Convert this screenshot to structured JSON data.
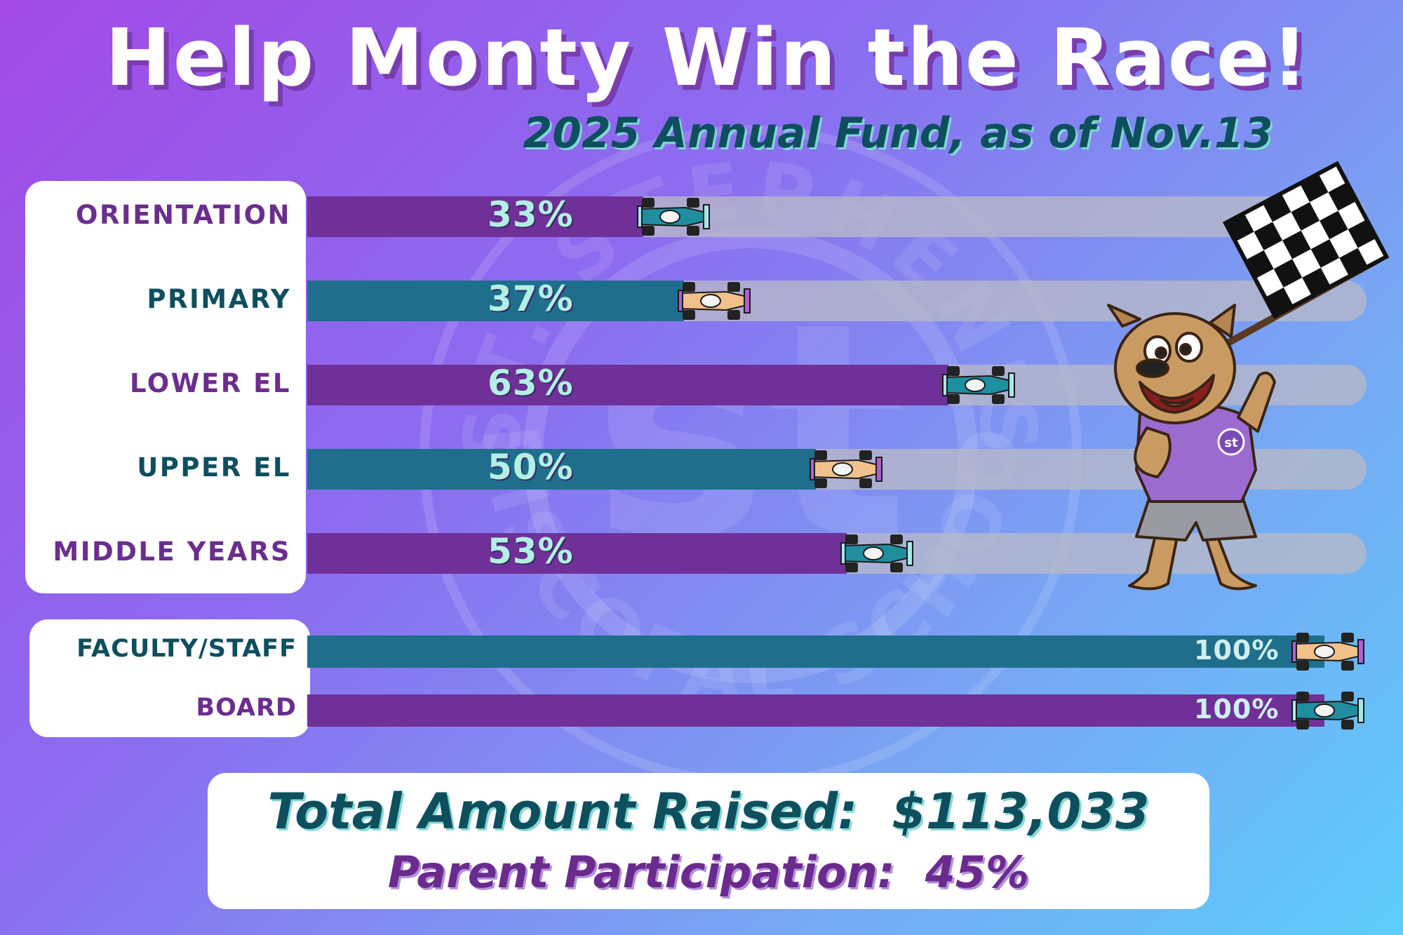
{
  "header": {
    "title": "Help Monty Win the Race!",
    "subtitle": "2025 Annual Fund, as of Nov.13"
  },
  "watermark": {
    "text_top": "ST. STEPHEN'S",
    "text_bottom": "EPISCOPAL SCHOOL",
    "monogram": "st"
  },
  "chart_data": {
    "type": "bar",
    "orientation": "horizontal",
    "title": "Help Monty Win the Race!",
    "subtitle": "2025 Annual Fund, as of Nov.13",
    "categories": [
      "ORIENTATION",
      "PRIMARY",
      "LOWER EL",
      "UPPER EL",
      "MIDDLE YEARS",
      "FACULTY/STAFF",
      "BOARD"
    ],
    "values": [
      33,
      37,
      63,
      50,
      53,
      100,
      100
    ],
    "value_labels": [
      "33%",
      "37%",
      "63%",
      "50%",
      "53%",
      "100%",
      "100%"
    ],
    "unit": "%",
    "xlim": [
      0,
      100
    ],
    "grid": false,
    "legend": "none"
  },
  "colors": {
    "purple_bar": "#6f3198",
    "teal_bar": "#1f6f8c",
    "label_purple": "#6b2d8e",
    "label_teal": "#0e4f5e",
    "pct_text": "#b2f0e3",
    "track": "#bdbdca"
  },
  "icons": [
    "race-car-icon",
    "checkered-flag-icon",
    "bulldog-mascot-icon"
  ],
  "mascot": {
    "shirt_badge": "st"
  },
  "summary": {
    "total_label": "Total Amount Raised:",
    "total_value": "$113,033",
    "parent_label": "Parent Participation:",
    "parent_value": "45%"
  }
}
